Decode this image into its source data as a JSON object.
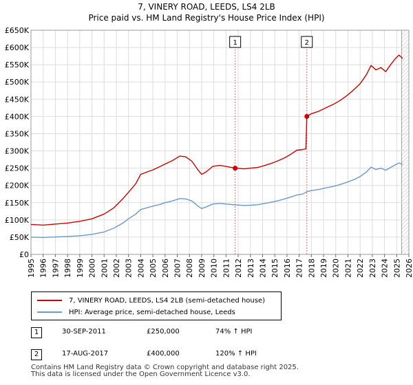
{
  "title_line1": "7, VINERY ROAD, LEEDS, LS4 2LB",
  "title_line2": "Price paid vs. HM Land Registry's House Price Index (HPI)",
  "chart_data": {
    "type": "line",
    "title": "7, VINERY ROAD, LEEDS, LS4 2LB — Price paid vs. HM Land Registry's House Price Index (HPI)",
    "xlabel": "",
    "ylabel": "",
    "xlim": [
      1995,
      2026
    ],
    "ylim": [
      0,
      650000
    ],
    "x_ticks": [
      1995,
      1996,
      1997,
      1998,
      1999,
      2000,
      2001,
      2002,
      2003,
      2004,
      2005,
      2006,
      2007,
      2008,
      2009,
      2010,
      2011,
      2012,
      2013,
      2014,
      2015,
      2016,
      2017,
      2018,
      2019,
      2020,
      2021,
      2022,
      2023,
      2024,
      2025,
      2026
    ],
    "y_ticks": [
      0,
      50000,
      100000,
      150000,
      200000,
      250000,
      300000,
      350000,
      400000,
      450000,
      500000,
      550000,
      600000,
      650000
    ],
    "y_tick_labels": [
      "£0",
      "£50K",
      "£100K",
      "£150K",
      "£200K",
      "£250K",
      "£300K",
      "£350K",
      "£400K",
      "£450K",
      "£500K",
      "£550K",
      "£600K",
      "£650K"
    ],
    "grid": true,
    "series": [
      {
        "name": "7, VINERY ROAD, LEEDS, LS4 2LB (semi-detached house)",
        "color": "#cc0000",
        "points": [
          [
            1995.0,
            87000
          ],
          [
            1996.0,
            85000
          ],
          [
            1997.0,
            88000
          ],
          [
            1998.0,
            91000
          ],
          [
            1999.0,
            96000
          ],
          [
            2000.0,
            103000
          ],
          [
            2001.0,
            117000
          ],
          [
            2001.8,
            135000
          ],
          [
            2002.5,
            160000
          ],
          [
            2003.0,
            180000
          ],
          [
            2003.6,
            205000
          ],
          [
            2004.0,
            232000
          ],
          [
            2004.6,
            240000
          ],
          [
            2005.0,
            245000
          ],
          [
            2005.6,
            255000
          ],
          [
            2006.0,
            262000
          ],
          [
            2006.6,
            272000
          ],
          [
            2007.2,
            285000
          ],
          [
            2007.7,
            283000
          ],
          [
            2008.2,
            270000
          ],
          [
            2008.7,
            245000
          ],
          [
            2009.0,
            232000
          ],
          [
            2009.4,
            240000
          ],
          [
            2009.9,
            255000
          ],
          [
            2010.5,
            258000
          ],
          [
            2011.0,
            255000
          ],
          [
            2011.75,
            250000
          ],
          [
            2012.5,
            248000
          ],
          [
            2013.0,
            250000
          ],
          [
            2013.6,
            252000
          ],
          [
            2014.2,
            258000
          ],
          [
            2014.8,
            265000
          ],
          [
            2015.3,
            272000
          ],
          [
            2015.8,
            280000
          ],
          [
            2016.3,
            290000
          ],
          [
            2016.8,
            302000
          ],
          [
            2017.3,
            304000
          ],
          [
            2017.55,
            306000
          ],
          [
            2017.63,
            400000
          ],
          [
            2018.0,
            408000
          ],
          [
            2018.6,
            415000
          ],
          [
            2019.2,
            425000
          ],
          [
            2019.8,
            435000
          ],
          [
            2020.3,
            445000
          ],
          [
            2020.9,
            460000
          ],
          [
            2021.5,
            478000
          ],
          [
            2022.0,
            495000
          ],
          [
            2022.5,
            520000
          ],
          [
            2022.9,
            548000
          ],
          [
            2023.3,
            535000
          ],
          [
            2023.7,
            542000
          ],
          [
            2024.1,
            530000
          ],
          [
            2024.5,
            550000
          ],
          [
            2024.9,
            568000
          ],
          [
            2025.2,
            578000
          ],
          [
            2025.5,
            568000
          ]
        ]
      },
      {
        "name": "HPI: Average price, semi-detached house, Leeds",
        "color": "#6a98cc",
        "points": [
          [
            1995.0,
            50000
          ],
          [
            1996.0,
            49000
          ],
          [
            1997.0,
            50500
          ],
          [
            1998.0,
            52000
          ],
          [
            1999.0,
            54000
          ],
          [
            2000.0,
            58000
          ],
          [
            2001.0,
            65000
          ],
          [
            2001.8,
            76000
          ],
          [
            2002.5,
            90000
          ],
          [
            2003.0,
            103000
          ],
          [
            2003.6,
            117000
          ],
          [
            2004.0,
            130000
          ],
          [
            2004.6,
            136000
          ],
          [
            2005.0,
            140000
          ],
          [
            2005.6,
            145000
          ],
          [
            2006.0,
            150000
          ],
          [
            2006.6,
            155000
          ],
          [
            2007.2,
            162000
          ],
          [
            2007.7,
            161000
          ],
          [
            2008.2,
            155000
          ],
          [
            2008.7,
            140000
          ],
          [
            2009.0,
            133000
          ],
          [
            2009.4,
            138000
          ],
          [
            2009.9,
            146000
          ],
          [
            2010.5,
            148000
          ],
          [
            2011.0,
            146000
          ],
          [
            2011.75,
            143500
          ],
          [
            2012.5,
            142000
          ],
          [
            2013.0,
            142500
          ],
          [
            2013.6,
            144000
          ],
          [
            2014.2,
            148000
          ],
          [
            2014.8,
            152000
          ],
          [
            2015.3,
            156000
          ],
          [
            2015.8,
            161000
          ],
          [
            2016.3,
            166000
          ],
          [
            2016.8,
            172000
          ],
          [
            2017.3,
            175000
          ],
          [
            2017.63,
            181800
          ],
          [
            2018.0,
            185000
          ],
          [
            2018.6,
            188000
          ],
          [
            2019.2,
            193000
          ],
          [
            2019.8,
            197000
          ],
          [
            2020.3,
            202000
          ],
          [
            2020.9,
            209000
          ],
          [
            2021.5,
            217000
          ],
          [
            2022.0,
            226000
          ],
          [
            2022.5,
            238000
          ],
          [
            2022.9,
            253000
          ],
          [
            2023.3,
            246000
          ],
          [
            2023.7,
            250000
          ],
          [
            2024.1,
            244000
          ],
          [
            2024.5,
            252000
          ],
          [
            2024.9,
            260000
          ],
          [
            2025.2,
            265000
          ],
          [
            2025.5,
            261000
          ]
        ]
      }
    ],
    "sale_markers": [
      {
        "label": "1",
        "x": 2011.75,
        "price": 250000
      },
      {
        "label": "2",
        "x": 2017.63,
        "price": 400000
      }
    ],
    "future_shading_from": 2025.4
  },
  "legend": {
    "property_label": "7, VINERY ROAD, LEEDS, LS4 2LB (semi-detached house)",
    "hpi_label": "HPI: Average price, semi-detached house, Leeds"
  },
  "sales": [
    {
      "marker": "1",
      "date": "30-SEP-2011",
      "price": "£250,000",
      "hpi": "74% ↑ HPI"
    },
    {
      "marker": "2",
      "date": "17-AUG-2017",
      "price": "£400,000",
      "hpi": "120% ↑ HPI"
    }
  ],
  "footer": {
    "line1": "Contains HM Land Registry data © Crown copyright and database right 2025.",
    "line2": "This data is licensed under the Open Government Licence v3.0."
  }
}
